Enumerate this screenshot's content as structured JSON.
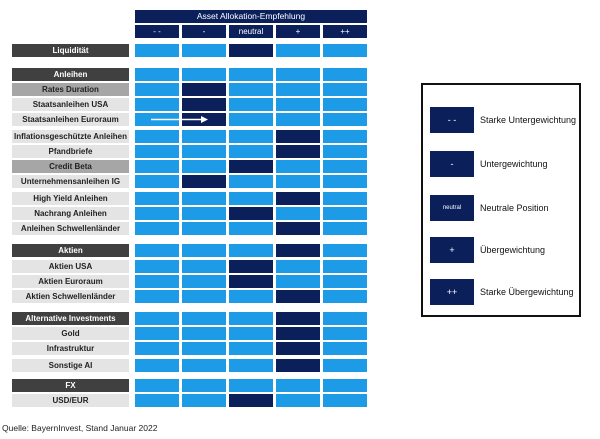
{
  "header": {
    "title": "Asset Allokation-Empfehlung",
    "columns": [
      "- -",
      "-",
      "neutral",
      "+",
      "++"
    ]
  },
  "rows": [
    {
      "label": "Liquidität",
      "kind": "sec",
      "active": 2
    },
    {
      "label": "Anleihen",
      "kind": "sec",
      "active": null
    },
    {
      "label": "Rates Duration",
      "kind": "sub",
      "active": 1
    },
    {
      "label": "Staatsanleihen USA",
      "kind": "item",
      "active": 1
    },
    {
      "label": "Staatsanleihen Euroraum",
      "kind": "item",
      "active": 1,
      "arrow_from": 0
    },
    {
      "label": "Inflationsgeschützte Anleihen",
      "kind": "item",
      "active": 3
    },
    {
      "label": "Pfandbriefe",
      "kind": "item",
      "active": 3
    },
    {
      "label": "Credit Beta",
      "kind": "sub",
      "active": 2
    },
    {
      "label": "Unternehmensanleihen IG",
      "kind": "item",
      "active": 1
    },
    {
      "label": "High Yield Anleihen",
      "kind": "item",
      "active": 3
    },
    {
      "label": "Nachrang Anleihen",
      "kind": "item",
      "active": 2
    },
    {
      "label": "Anleihen Schwellenländer",
      "kind": "item",
      "active": 3
    },
    {
      "label": "Aktien",
      "kind": "sec",
      "active": 3
    },
    {
      "label": "Aktien USA",
      "kind": "item",
      "active": 2
    },
    {
      "label": "Aktien Euroraum",
      "kind": "item",
      "active": 2
    },
    {
      "label": "Aktien Schwellenländer",
      "kind": "item",
      "active": 3
    },
    {
      "label": "Alternative Investments",
      "kind": "sec",
      "active": 3
    },
    {
      "label": "Gold",
      "kind": "item",
      "active": 3
    },
    {
      "label": "Infrastruktur",
      "kind": "item",
      "active": 3
    },
    {
      "label": "Sonstige AI",
      "kind": "item",
      "active": 3
    },
    {
      "label": "FX",
      "kind": "sec",
      "active": null
    },
    {
      "label": "USD/EUR",
      "kind": "item",
      "active": 2
    }
  ],
  "legend": [
    {
      "symbol": "- -",
      "text": "Starke Untergewichtung"
    },
    {
      "symbol": "-",
      "text": "Untergewichtung"
    },
    {
      "symbol": "neutral",
      "text": "Neutrale Position"
    },
    {
      "symbol": "+",
      "text": "Übergewichtung"
    },
    {
      "symbol": "++",
      "text": "Starke Übergewichtung"
    }
  ],
  "source": "Quelle: BayernInvest, Stand Januar 2022",
  "colors": {
    "light": "#1e9be6",
    "dark": "#0b1f5b"
  }
}
